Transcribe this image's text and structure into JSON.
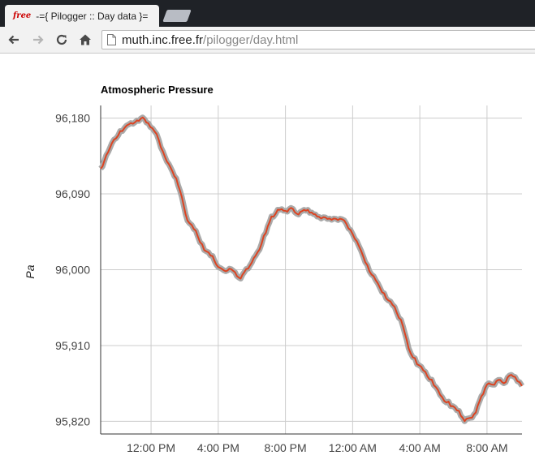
{
  "browser": {
    "tab": {
      "favicon_text": "free",
      "title": "-={ Pilogger :: Day data }="
    },
    "url_host": "muth.inc.free.fr",
    "url_path": "/pilogger/day.html",
    "icons": [
      "back-icon",
      "forward-icon",
      "reload-icon",
      "home-icon",
      "page-icon"
    ]
  },
  "chart_data": {
    "type": "line",
    "title": "Atmospheric Pressure",
    "xlabel": "",
    "ylabel": "Pa",
    "ylim": [
      95805,
      96195
    ],
    "yticks": [
      95820,
      95910,
      96000,
      96090,
      96180
    ],
    "ytick_labels": [
      "95,820",
      "95,910",
      "96,000",
      "96,090",
      "96,180"
    ],
    "x_start": "2014-01-01 09:00",
    "x_end": "2014-01-02 10:05",
    "xtick_labels": [
      "12:00 PM",
      "4:00 PM",
      "8:00 PM",
      "12:00 AM",
      "4:00 AM",
      "8:00 AM"
    ],
    "grid": true,
    "legend": "none",
    "colors": {
      "line": "#dc4422",
      "band": "#aaaaaa"
    },
    "series": [
      {
        "points": [
          [
            "2014-01-01 09:00",
            96120
          ],
          [
            "2014-01-01 09:40",
            96150
          ],
          [
            "2014-01-01 10:10",
            96165
          ],
          [
            "2014-01-01 10:40",
            96172
          ],
          [
            "2014-01-01 11:10",
            96178
          ],
          [
            "2014-01-01 11:30",
            96180
          ],
          [
            "2014-01-01 11:50",
            96175
          ],
          [
            "2014-01-01 12:20",
            96160
          ],
          [
            "2014-01-01 12:50",
            96135
          ],
          [
            "2014-01-01 13:10",
            96120
          ],
          [
            "2014-01-01 13:30",
            96110
          ],
          [
            "2014-01-01 13:50",
            96085
          ],
          [
            "2014-01-01 14:10",
            96060
          ],
          [
            "2014-01-01 14:40",
            96045
          ],
          [
            "2014-01-01 15:10",
            96025
          ],
          [
            "2014-01-01 15:40",
            96015
          ],
          [
            "2014-01-01 16:00",
            96005
          ],
          [
            "2014-01-01 16:20",
            95998
          ],
          [
            "2014-01-01 16:40",
            96003
          ],
          [
            "2014-01-01 17:00",
            95996
          ],
          [
            "2014-01-01 17:20",
            95991
          ],
          [
            "2014-01-01 17:40",
            96000
          ],
          [
            "2014-01-01 18:00",
            96010
          ],
          [
            "2014-01-01 18:20",
            96020
          ],
          [
            "2014-01-01 18:50",
            96045
          ],
          [
            "2014-01-01 19:10",
            96063
          ],
          [
            "2014-01-01 19:40",
            96072
          ],
          [
            "2014-01-01 20:00",
            96070
          ],
          [
            "2014-01-01 20:20",
            96074
          ],
          [
            "2014-01-01 20:40",
            96067
          ],
          [
            "2014-01-01 21:00",
            96070
          ],
          [
            "2014-01-01 21:20",
            96072
          ],
          [
            "2014-01-01 21:40",
            96066
          ],
          [
            "2014-01-01 22:00",
            96064
          ],
          [
            "2014-01-01 22:30",
            96060
          ],
          [
            "2014-01-01 23:00",
            96062
          ],
          [
            "2014-01-01 23:30",
            96058
          ],
          [
            "2014-01-02 00:00",
            96044
          ],
          [
            "2014-01-02 00:30",
            96022
          ],
          [
            "2014-01-02 01:00",
            96000
          ],
          [
            "2014-01-02 01:30",
            95983
          ],
          [
            "2014-01-02 02:00",
            95968
          ],
          [
            "2014-01-02 02:30",
            95955
          ],
          [
            "2014-01-02 03:00",
            95935
          ],
          [
            "2014-01-02 03:20",
            95906
          ],
          [
            "2014-01-02 03:50",
            95890
          ],
          [
            "2014-01-02 04:20",
            95878
          ],
          [
            "2014-01-02 04:50",
            95865
          ],
          [
            "2014-01-02 05:20",
            95848
          ],
          [
            "2014-01-02 05:50",
            95840
          ],
          [
            "2014-01-02 06:20",
            95832
          ],
          [
            "2014-01-02 06:40",
            95822
          ],
          [
            "2014-01-02 07:00",
            95824
          ],
          [
            "2014-01-02 07:20",
            95832
          ],
          [
            "2014-01-02 07:40",
            95850
          ],
          [
            "2014-01-02 08:00",
            95865
          ],
          [
            "2014-01-02 08:20",
            95864
          ],
          [
            "2014-01-02 08:40",
            95870
          ],
          [
            "2014-01-02 09:00",
            95866
          ],
          [
            "2014-01-02 09:20",
            95875
          ],
          [
            "2014-01-02 09:40",
            95874
          ],
          [
            "2014-01-02 10:05",
            95862
          ]
        ]
      }
    ]
  }
}
